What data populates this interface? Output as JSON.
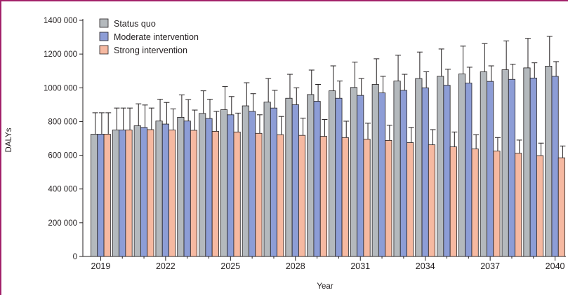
{
  "colors": {
    "frame": "#a3226a",
    "axis": "#231f20",
    "status_quo": "#b4b9bd",
    "moderate": "#8d9dd6",
    "strong": "#f6b9a1"
  },
  "chart_data": {
    "type": "bar",
    "xlabel": "Year",
    "ylabel": "DALYs",
    "ylim": [
      0,
      1400000
    ],
    "yticks": [
      0,
      200000,
      400000,
      600000,
      800000,
      1000000,
      1200000,
      1400000
    ],
    "ytick_labels": [
      "0",
      "200 000",
      "400 000",
      "600 000",
      "800 000",
      "1000 000",
      "1200 000",
      "1400 000"
    ],
    "x_tick_labels": [
      "2019",
      "2022",
      "2025",
      "2028",
      "2031",
      "2034",
      "2037",
      "2040"
    ],
    "categories": [
      2019,
      2020,
      2021,
      2022,
      2023,
      2024,
      2025,
      2026,
      2027,
      2028,
      2029,
      2030,
      2031,
      2032,
      2033,
      2034,
      2035,
      2036,
      2037,
      2038,
      2039,
      2040
    ],
    "legend_position": "top-left",
    "series": [
      {
        "name": "Status quo",
        "values": [
          725000,
          750000,
          775000,
          803000,
          825000,
          848000,
          870000,
          893000,
          915000,
          938000,
          960000,
          982000,
          1002000,
          1020000,
          1040000,
          1055000,
          1068000,
          1082000,
          1095000,
          1107000,
          1118000,
          1128000
        ],
        "upper": [
          852000,
          880000,
          905000,
          932000,
          958000,
          982000,
          1007000,
          1030000,
          1055000,
          1080000,
          1105000,
          1130000,
          1152000,
          1172000,
          1193000,
          1212000,
          1230000,
          1247000,
          1262000,
          1278000,
          1293000,
          1305000
        ]
      },
      {
        "name": "Moderate intervention",
        "values": [
          725000,
          750000,
          765000,
          785000,
          803000,
          818000,
          840000,
          860000,
          880000,
          900000,
          920000,
          938000,
          955000,
          970000,
          985000,
          1000000,
          1015000,
          1028000,
          1038000,
          1050000,
          1058000,
          1068000
        ],
        "upper": [
          852000,
          880000,
          898000,
          913000,
          930000,
          932000,
          948000,
          965000,
          985000,
          1000000,
          1020000,
          1040000,
          1055000,
          1068000,
          1080000,
          1095000,
          1110000,
          1122000,
          1130000,
          1140000,
          1148000,
          1155000
        ]
      },
      {
        "name": "Strong intervention",
        "values": [
          725000,
          750000,
          752000,
          750000,
          748000,
          742000,
          738000,
          730000,
          722000,
          718000,
          712000,
          705000,
          695000,
          688000,
          675000,
          662000,
          650000,
          638000,
          625000,
          612000,
          598000,
          585000
        ],
        "upper": [
          852000,
          880000,
          880000,
          875000,
          868000,
          860000,
          850000,
          840000,
          830000,
          820000,
          812000,
          802000,
          790000,
          778000,
          765000,
          752000,
          738000,
          722000,
          705000,
          690000,
          672000,
          655000
        ]
      }
    ]
  }
}
